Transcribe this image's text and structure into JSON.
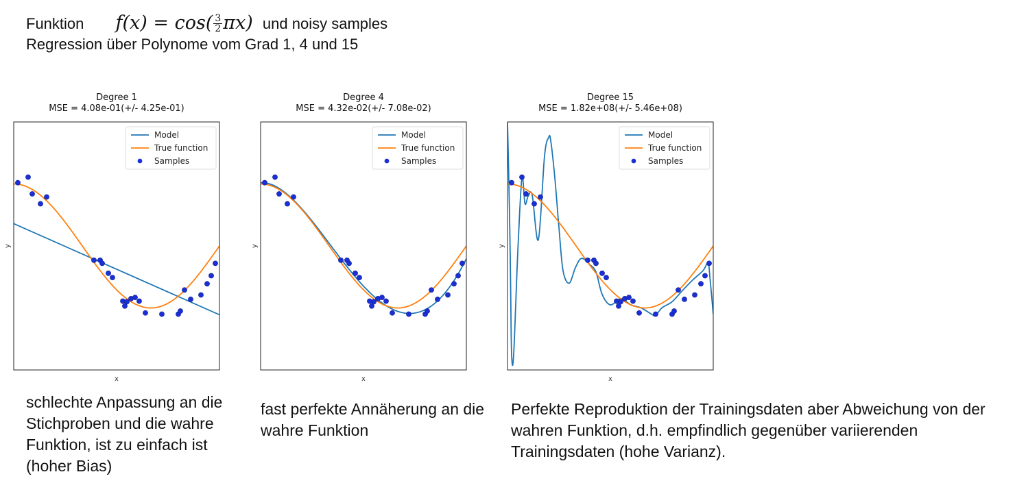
{
  "header": {
    "line1_prefix": "Funktion",
    "formula_lhs": "f(x) = cos(",
    "formula_frac_num": "3",
    "formula_frac_den": "2",
    "formula_rhs": "πx)",
    "line1_suffix": "und noisy samples",
    "line2": "Regression über Polynome vom Grad 1, 4 und 15"
  },
  "captions": [
    "schlechte Anpassung an die Stichproben und die wahre Funktion, ist zu einfach ist (hoher Bias)",
    "fast perfekte Annäherung an die wahre Funktion",
    "Perfekte Reproduktion der Trainingsdaten aber Abweichung von der wahren Funktion, d.h. empfindlich gegenüber variierenden Trainingsdaten (hohe Varianz)."
  ],
  "colors": {
    "model": "#1f77b4",
    "true_function": "#ff7f0e",
    "samples": "#1a2fd6"
  },
  "chart_data": [
    {
      "type": "line",
      "title": "Degree 1",
      "subtitle": "MSE = 4.08e-01(+/- 4.25e-01)",
      "xlabel": "x",
      "ylabel": "y",
      "xlim": [
        0,
        1
      ],
      "ylim": [
        -2,
        2
      ],
      "legend_placement": "top-right",
      "legend": [
        "Model",
        "True function",
        "Samples"
      ],
      "degree": 1,
      "model_curve": {
        "x": [
          0.0,
          1.0
        ],
        "y": [
          0.36,
          -1.11
        ]
      },
      "samples": {
        "x": [
          0.02,
          0.07,
          0.09,
          0.13,
          0.16,
          0.39,
          0.42,
          0.43,
          0.46,
          0.48,
          0.53,
          0.54,
          0.55,
          0.57,
          0.59,
          0.61,
          0.64,
          0.72,
          0.8,
          0.81,
          0.83,
          0.86,
          0.91,
          0.94,
          0.96,
          0.98
        ],
        "y": [
          1.02,
          1.11,
          0.84,
          0.68,
          0.79,
          -0.23,
          -0.23,
          -0.28,
          -0.44,
          -0.51,
          -0.89,
          -0.97,
          -0.9,
          -0.85,
          -0.83,
          -0.89,
          -1.08,
          -1.1,
          -1.1,
          -1.05,
          -0.71,
          -0.86,
          -0.79,
          -0.61,
          -0.48,
          -0.28
        ]
      }
    },
    {
      "type": "line",
      "title": "Degree 4",
      "subtitle": "MSE = 4.32e-02(+/- 7.08e-02)",
      "xlabel": "x",
      "ylabel": "y",
      "xlim": [
        0,
        1
      ],
      "ylim": [
        -2,
        2
      ],
      "legend_placement": "top-right",
      "legend": [
        "Model",
        "True function",
        "Samples"
      ],
      "degree": 4,
      "samples": {
        "x": [
          0.02,
          0.07,
          0.09,
          0.13,
          0.16,
          0.39,
          0.42,
          0.43,
          0.46,
          0.48,
          0.53,
          0.54,
          0.55,
          0.57,
          0.59,
          0.61,
          0.64,
          0.72,
          0.8,
          0.81,
          0.83,
          0.86,
          0.91,
          0.94,
          0.96,
          0.98
        ],
        "y": [
          1.02,
          1.11,
          0.84,
          0.68,
          0.79,
          -0.23,
          -0.23,
          -0.28,
          -0.44,
          -0.51,
          -0.89,
          -0.97,
          -0.9,
          -0.85,
          -0.83,
          -0.89,
          -1.08,
          -1.1,
          -1.1,
          -1.05,
          -0.71,
          -0.86,
          -0.79,
          -0.61,
          -0.48,
          -0.28
        ]
      }
    },
    {
      "type": "line",
      "title": "Degree 15",
      "subtitle": "MSE = 1.82e+08(+/- 5.46e+08)",
      "xlabel": "x",
      "ylabel": "y",
      "xlim": [
        0,
        1
      ],
      "ylim": [
        -2,
        2
      ],
      "legend_placement": "top-right",
      "legend": [
        "Model",
        "True function",
        "Samples"
      ],
      "degree": 15,
      "model_curve": {
        "x": [
          0.0,
          0.01,
          0.015,
          0.02,
          0.03,
          0.05,
          0.07,
          0.085,
          0.1,
          0.12,
          0.15,
          0.18,
          0.2,
          0.21,
          0.23,
          0.25,
          0.27,
          0.3,
          0.33,
          0.36,
          0.4,
          0.43,
          0.46,
          0.5,
          0.55,
          0.6,
          0.65,
          0.7,
          0.72,
          0.75,
          0.8,
          0.85,
          0.9,
          0.95,
          0.975,
          0.985,
          1.0
        ],
        "y": [
          2.0,
          0.5,
          -0.6,
          -1.75,
          -1.75,
          -0.1,
          1.1,
          0.68,
          0.8,
          0.82,
          0.1,
          1.45,
          1.75,
          1.7,
          1.1,
          0.3,
          -0.4,
          -0.6,
          -0.35,
          -0.2,
          -0.3,
          -0.42,
          -0.78,
          -0.95,
          -0.85,
          -0.95,
          -1.0,
          -1.1,
          -1.12,
          -1.0,
          -0.9,
          -0.72,
          -0.55,
          -0.4,
          -0.28,
          -0.55,
          -1.1
        ]
      },
      "samples": {
        "x": [
          0.02,
          0.07,
          0.09,
          0.13,
          0.16,
          0.39,
          0.42,
          0.43,
          0.46,
          0.48,
          0.53,
          0.54,
          0.55,
          0.57,
          0.59,
          0.61,
          0.64,
          0.72,
          0.8,
          0.81,
          0.83,
          0.86,
          0.91,
          0.94,
          0.96,
          0.98
        ],
        "y": [
          1.02,
          1.11,
          0.84,
          0.68,
          0.79,
          -0.23,
          -0.23,
          -0.28,
          -0.44,
          -0.51,
          -0.89,
          -0.97,
          -0.9,
          -0.85,
          -0.83,
          -0.89,
          -1.08,
          -1.1,
          -1.1,
          -1.05,
          -0.71,
          -0.86,
          -0.79,
          -0.61,
          -0.48,
          -0.28
        ]
      }
    }
  ]
}
